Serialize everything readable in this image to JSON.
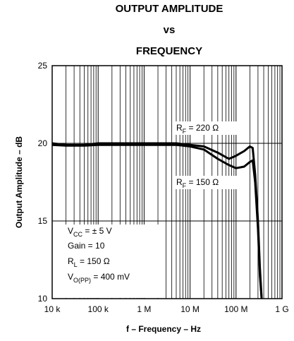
{
  "chart_data": {
    "type": "line",
    "title_lines": [
      "OUTPUT AMPLITUDE",
      "vs",
      "FREQUENCY"
    ],
    "xlabel": "f – Frequency – Hz",
    "ylabel": "Output Amplitude – dB",
    "x_scale": "log",
    "xlim": [
      10000,
      1000000000
    ],
    "ylim": [
      10,
      25
    ],
    "x_tick_values": [
      10000,
      100000,
      1000000,
      10000000,
      100000000,
      1000000000
    ],
    "x_tick_labels": [
      "10 k",
      "100 k",
      "1 M",
      "10 M",
      "100 M",
      "1 G"
    ],
    "y_tick_values": [
      10,
      15,
      20,
      25
    ],
    "y_tick_labels": [
      "10",
      "15",
      "20",
      "25"
    ],
    "grid": true,
    "series": [
      {
        "name": "RF = 220 Ω",
        "label": {
          "base": "R",
          "sub": "F",
          "rest": " = 220 Ω"
        },
        "x": [
          10000,
          20000,
          50000,
          100000,
          1000000,
          5000000,
          10000000,
          20000000,
          40000000,
          70000000,
          100000000,
          150000000,
          200000000,
          230000000,
          260000000,
          300000000,
          330000000,
          360000000
        ],
        "y": [
          20.0,
          19.9,
          19.9,
          20.0,
          20.0,
          20.0,
          19.9,
          19.8,
          19.4,
          19.0,
          19.2,
          19.5,
          19.8,
          19.7,
          18.0,
          15.0,
          12.0,
          10.0
        ]
      },
      {
        "name": "RF = 150 Ω",
        "label": {
          "base": "R",
          "sub": "F",
          "rest": " = 150 Ω"
        },
        "x": [
          10000,
          20000,
          50000,
          100000,
          1000000,
          5000000,
          10000000,
          20000000,
          40000000,
          70000000,
          100000000,
          150000000,
          200000000,
          230000000,
          260000000,
          300000000,
          330000000,
          360000000
        ],
        "y": [
          19.9,
          19.85,
          19.85,
          19.9,
          19.9,
          19.9,
          19.8,
          19.6,
          19.0,
          18.6,
          18.4,
          18.5,
          18.8,
          18.9,
          17.5,
          14.5,
          11.5,
          10.0
        ]
      }
    ],
    "legend_box": [
      {
        "base": "V",
        "sub": "CC",
        "rest": " = ± 5 V"
      },
      {
        "base": "Gain = 10",
        "sub": "",
        "rest": ""
      },
      {
        "base": "R",
        "sub": "L",
        "rest": " = 150 Ω"
      },
      {
        "base": "V",
        "sub": "O(PP)",
        "rest": " = 400 mV"
      }
    ]
  }
}
